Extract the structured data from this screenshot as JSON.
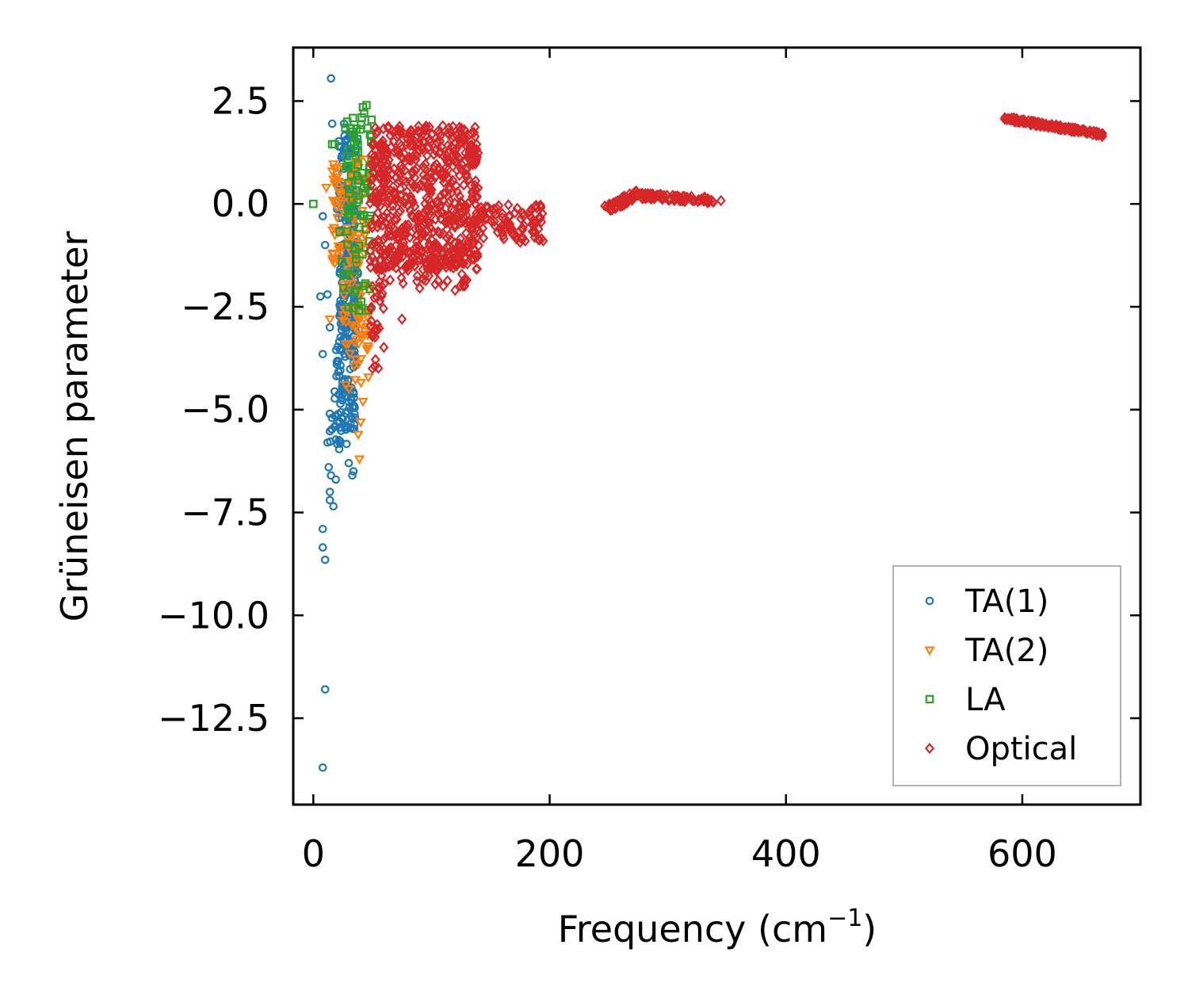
{
  "chart_data": {
    "type": "scatter",
    "title": "",
    "xlabel": "Frequency (cm",
    "xlabel_sup": "−1",
    "xlabel_close": ")",
    "ylabel": "Grüneisen parameter",
    "xlim": [
      -17,
      700
    ],
    "ylim": [
      -14.6,
      3.8
    ],
    "xticks": [
      0,
      200,
      400,
      600
    ],
    "xtick_labels": [
      "0",
      "200",
      "400",
      "600"
    ],
    "yticks": [
      2.5,
      0.0,
      -2.5,
      -5.0,
      -7.5,
      -10.0,
      -12.5
    ],
    "ytick_labels": [
      "2.5",
      "0.0",
      "−2.5",
      "−5.0",
      "−7.5",
      "−10.0",
      "−12.5"
    ],
    "legend_position": "lower-right",
    "series": [
      {
        "name": "TA(1)",
        "marker": "circle",
        "color": "#1f77b4",
        "points": [
          [
            15,
            3.05
          ],
          [
            26,
            1.95
          ],
          [
            16,
            1.95
          ],
          [
            8,
            -0.3
          ],
          [
            10,
            -1.0
          ],
          [
            6,
            -2.25
          ],
          [
            12,
            -2.2
          ],
          [
            8,
            -3.65
          ],
          [
            14,
            -3.0
          ],
          [
            12,
            -5.8
          ],
          [
            14,
            -5.1
          ],
          [
            13,
            -6.4
          ],
          [
            15,
            -6.6
          ],
          [
            19,
            -6.7
          ],
          [
            14,
            -7.0
          ],
          [
            14,
            -7.2
          ],
          [
            17,
            -7.35
          ],
          [
            8,
            -7.9
          ],
          [
            8,
            -8.35
          ],
          [
            10,
            -8.65
          ],
          [
            10,
            -11.8
          ],
          [
            8,
            -13.7
          ],
          [
            33,
            -6.6
          ],
          [
            30,
            -6.3
          ],
          [
            34,
            -6.5
          ],
          [
            35,
            -2.8
          ],
          [
            28,
            -2.9
          ],
          [
            38,
            0.2
          ]
        ],
        "clusters": [
          {
            "xmin": 20,
            "xmax": 38,
            "ymin": -1.0,
            "ymax": 1.7,
            "n": 110
          },
          {
            "xmin": 22,
            "xmax": 38,
            "ymin": -3.0,
            "ymax": -1.0,
            "n": 130
          },
          {
            "xmin": 18,
            "xmax": 36,
            "ymin": -5.5,
            "ymax": -3.0,
            "n": 110
          },
          {
            "xmin": 14,
            "xmax": 30,
            "ymin": -6.0,
            "ymax": -5.0,
            "n": 20
          }
        ]
      },
      {
        "name": "TA(2)",
        "marker": "triangle-down",
        "color": "#ff7f0e",
        "points": [
          [
            16,
            0.8
          ],
          [
            11,
            0.4
          ],
          [
            14,
            -2.8
          ],
          [
            39,
            -6.2
          ],
          [
            40,
            -5.3
          ],
          [
            42,
            -4.8
          ],
          [
            38,
            -5.6
          ]
        ],
        "clusters": [
          {
            "xmin": 16,
            "xmax": 46,
            "ymin": -1.5,
            "ymax": 1.2,
            "n": 90
          },
          {
            "xmin": 25,
            "xmax": 48,
            "ymin": -4.5,
            "ymax": -1.5,
            "n": 60
          }
        ]
      },
      {
        "name": "LA",
        "marker": "square",
        "color": "#2ca02c",
        "points": [
          [
            0,
            0.0
          ],
          [
            16,
            1.45
          ],
          [
            18,
            1.45
          ],
          [
            45,
            2.4
          ],
          [
            42,
            2.35
          ],
          [
            43,
            2.2
          ],
          [
            27,
            1.85
          ]
        ],
        "clusters": [
          {
            "xmin": 28,
            "xmax": 50,
            "ymin": -0.5,
            "ymax": 2.2,
            "n": 60
          },
          {
            "xmin": 20,
            "xmax": 50,
            "ymin": -2.6,
            "ymax": -0.5,
            "n": 30
          }
        ]
      },
      {
        "name": "Optical",
        "marker": "diamond",
        "color": "#d62728",
        "points": [
          [
            192,
            -0.35
          ],
          [
            345,
            0.08
          ],
          [
            90,
            -2.05
          ],
          [
            120,
            -2.1
          ],
          [
            58,
            -2.0
          ],
          [
            65,
            -1.85
          ],
          [
            75,
            -2.8
          ],
          [
            52,
            -3.95
          ],
          [
            50,
            -4.0
          ],
          [
            133,
            -1.2
          ]
        ],
        "clusters": [
          {
            "xmin": 48,
            "xmax": 140,
            "ymin": -1.6,
            "ymax": 1.9,
            "n": 650
          },
          {
            "xmin": 140,
            "xmax": 195,
            "ymin": -0.95,
            "ymax": 0.0,
            "n": 90
          },
          {
            "xmin": 55,
            "xmax": 130,
            "ymin": -2.0,
            "ymax": -1.0,
            "n": 80
          },
          {
            "xmin": 48,
            "xmax": 60,
            "ymin": -4.0,
            "ymax": -2.0,
            "n": 25
          }
        ],
        "bands": [
          {
            "x0": 246,
            "y0": -0.15,
            "x1": 275,
            "y1": 0.25,
            "spread": 0.22,
            "n": 60
          },
          {
            "x0": 275,
            "y0": 0.2,
            "x1": 340,
            "y1": 0.08,
            "spread": 0.14,
            "n": 90
          },
          {
            "x0": 585,
            "y0": 2.08,
            "x1": 668,
            "y1": 1.68,
            "spread": 0.1,
            "n": 140
          }
        ]
      }
    ]
  }
}
